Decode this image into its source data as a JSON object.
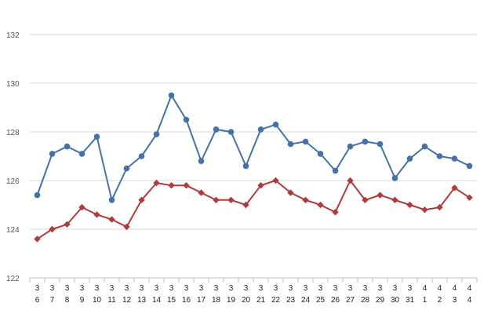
{
  "chart_data": {
    "type": "line",
    "categories": [
      [
        "3",
        "6"
      ],
      [
        "3",
        "7"
      ],
      [
        "3",
        "8"
      ],
      [
        "3",
        "9"
      ],
      [
        "3",
        "10"
      ],
      [
        "3",
        "11"
      ],
      [
        "3",
        "12"
      ],
      [
        "3",
        "13"
      ],
      [
        "3",
        "14"
      ],
      [
        "3",
        "15"
      ],
      [
        "3",
        "16"
      ],
      [
        "3",
        "17"
      ],
      [
        "3",
        "18"
      ],
      [
        "3",
        "19"
      ],
      [
        "3",
        "20"
      ],
      [
        "3",
        "21"
      ],
      [
        "3",
        "22"
      ],
      [
        "3",
        "23"
      ],
      [
        "3",
        "24"
      ],
      [
        "3",
        "25"
      ],
      [
        "3",
        "26"
      ],
      [
        "3",
        "27"
      ],
      [
        "3",
        "28"
      ],
      [
        "3",
        "29"
      ],
      [
        "3",
        "30"
      ],
      [
        "3",
        "31"
      ],
      [
        "4",
        "1"
      ],
      [
        "4",
        "2"
      ],
      [
        "4",
        "3"
      ],
      [
        "4",
        "4"
      ]
    ],
    "series": [
      {
        "color": "#4472a8",
        "marker": "circle",
        "values": [
          125.4,
          127.1,
          127.4,
          127.1,
          127.8,
          125.2,
          126.5,
          127.0,
          127.9,
          129.5,
          128.5,
          126.8,
          128.1,
          128.0,
          126.6,
          128.1,
          128.3,
          127.5,
          127.6,
          127.1,
          126.4,
          127.4,
          127.6,
          127.5,
          126.1,
          126.9,
          127.4,
          127.0,
          126.9,
          126.6
        ]
      },
      {
        "color": "#b03a3a",
        "marker": "diamond",
        "values": [
          123.6,
          124.0,
          124.2,
          124.9,
          124.6,
          124.4,
          124.1,
          125.2,
          125.9,
          125.8,
          125.8,
          125.5,
          125.2,
          125.2,
          125.0,
          125.8,
          126.0,
          125.5,
          125.2,
          125.0,
          124.7,
          126.0,
          125.2,
          125.4,
          125.2,
          125.0,
          124.8,
          124.9,
          125.7,
          125.3
        ]
      }
    ],
    "ylim": [
      122,
      132
    ],
    "yticks": [
      "122",
      "124",
      "126",
      "128",
      "130",
      "132"
    ],
    "grid": true,
    "title": "",
    "xlabel": "",
    "ylabel": ""
  }
}
